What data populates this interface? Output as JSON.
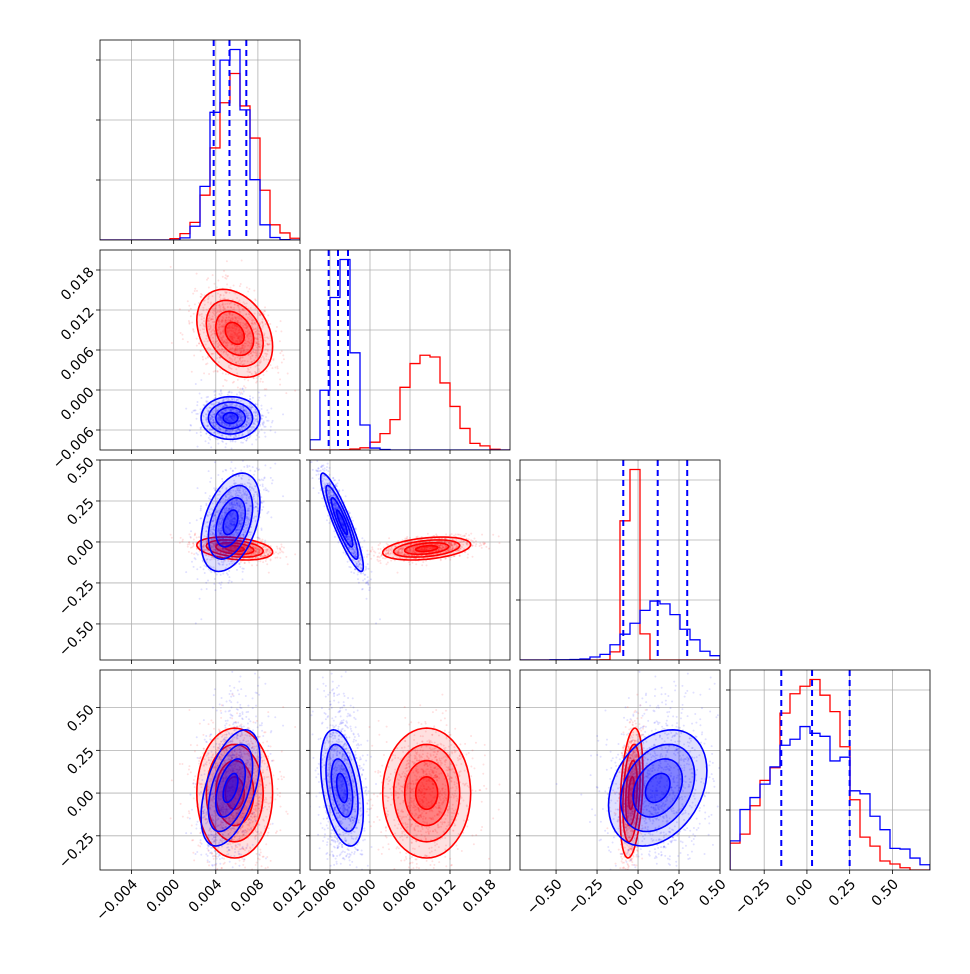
{
  "figure": {
    "type": "corner-plot"
  },
  "colors": {
    "red": "#ff0000",
    "blue": "#0000ff",
    "grid": "#b0b0b0",
    "axes": "#000000"
  },
  "chart_data": {
    "type": "corner",
    "series": [
      {
        "color": "#ff0000",
        "means": [
          0.0058,
          0.0085,
          -0.04,
          0.0
        ],
        "sds": [
          0.0018,
          0.0033,
          0.035,
          0.19
        ],
        "corr": [
          [
            1,
            -0.3,
            -0.3,
            0
          ],
          [
            -0.3,
            1,
            0.35,
            0
          ],
          [
            -0.3,
            0.35,
            1,
            0.3
          ],
          [
            0,
            0,
            0.3,
            1
          ]
        ]
      },
      {
        "color": "#0000ff",
        "means": [
          0.0054,
          -0.0042,
          0.12,
          0.03
        ],
        "sds": [
          0.0014,
          0.0016,
          0.15,
          0.17
        ],
        "corr": [
          [
            1,
            0,
            0.4,
            0.5
          ],
          [
            0,
            1,
            -0.9,
            -0.4
          ],
          [
            0.4,
            -0.9,
            1,
            0.3
          ],
          [
            0.5,
            -0.4,
            0.3,
            1
          ]
        ]
      }
    ],
    "quantile_lines": [
      [
        0.0038,
        0.0053,
        0.0069
      ],
      [
        -0.0062,
        -0.0048,
        -0.0033
      ],
      [
        -0.09,
        0.12,
        0.3
      ],
      [
        -0.15,
        0.03,
        0.25
      ]
    ],
    "axes_ranges": [
      [
        -0.007,
        0.012
      ],
      [
        -0.009,
        0.021
      ],
      [
        -0.72,
        0.5
      ],
      [
        -0.45,
        0.72
      ]
    ],
    "grid": true,
    "ticks": [
      {
        "values": [
          -0.004,
          0.0,
          0.004,
          0.008,
          0.012
        ],
        "labels": [
          "−0.004",
          "0.000",
          "0.004",
          "0.008",
          "0.012"
        ]
      },
      {
        "values": [
          -0.006,
          0.0,
          0.006,
          0.012,
          0.018
        ],
        "labels": [
          "−0.006",
          "0.000",
          "0.006",
          "0.012",
          "0.018"
        ]
      },
      {
        "values": [
          -0.5,
          -0.25,
          0.0,
          0.25,
          0.5
        ],
        "labels": [
          "−0.50",
          "−0.25",
          "0.00",
          "0.25",
          "0.50"
        ]
      },
      {
        "values": [
          -0.25,
          0.0,
          0.25,
          0.5
        ],
        "labels": [
          "−0.25",
          "0.00",
          "0.25",
          "0.50"
        ]
      }
    ]
  }
}
